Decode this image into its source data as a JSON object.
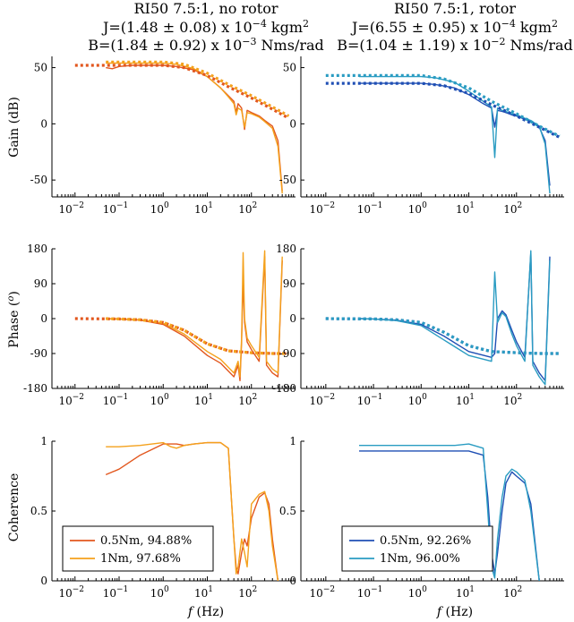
{
  "columns": [
    {
      "title1": "RI50 7.5:1, no rotor",
      "title2": "J=(1.48 ± 0.08) x 10",
      "title2_exp": "−4",
      "title2_unit": " kgm",
      "title2_unit_exp": "2",
      "title3": "B=(1.84 ± 0.92) x 10",
      "title3_exp": "−3",
      "title3_unit": " Nms/rad"
    },
    {
      "title1": "RI50 7.5:1, rotor",
      "title2": "J=(6.55 ± 0.95) x 10",
      "title2_exp": "−4",
      "title2_unit": " kgm",
      "title2_unit_exp": "2",
      "title3": "B=(1.04 ± 1.19) x 10",
      "title3_exp": "−2",
      "title3_unit": " Nms/rad"
    }
  ],
  "axis_labels": {
    "gain": "Gain (dB)",
    "phase": "Phase (",
    "phase_sup": "o",
    "phase_close": ")",
    "coherence": "Coherence",
    "x_italic": "f",
    "x_rest": " (Hz)"
  },
  "x_ticks": {
    "base": "10",
    "exponents": [
      "−2",
      "−1",
      "0",
      "1",
      "2"
    ]
  },
  "y_ticks": {
    "gain": [
      "50",
      "0",
      "-50"
    ],
    "phase": [
      "180",
      "90",
      "0",
      "-90",
      "-180"
    ],
    "coherence": [
      "1",
      "0.5",
      "0"
    ]
  },
  "legends": [
    {
      "entries": [
        {
          "label": "0.5Nm, 94.88%",
          "color": "#e2571e"
        },
        {
          "label": "1Nm, 97.68%",
          "color": "#f4a11c"
        }
      ]
    },
    {
      "entries": [
        {
          "label": "0.5Nm, 92.26%",
          "color": "#1f4fb4"
        },
        {
          "label": "1Nm, 96.00%",
          "color": "#2a9cc2"
        }
      ]
    }
  ],
  "colors": {
    "no_rotor_05": "#e2571e",
    "no_rotor_1": "#f4a11c",
    "rotor_05": "#1f4fb4",
    "rotor_1": "#2a9cc2"
  },
  "chart_data": [
    {
      "type": "line",
      "panel": "gain",
      "column": 0,
      "xscale": "log",
      "xlim": [
        0.003,
        1000
      ],
      "ylim": [
        -65,
        60
      ],
      "series": [
        {
          "color": "#e2571e",
          "style": "solid",
          "x": [
            0.05,
            0.07,
            0.1,
            0.2,
            0.5,
            1,
            2,
            5,
            10,
            20,
            30,
            40,
            45,
            50,
            60,
            70,
            80,
            100,
            150,
            200,
            300,
            400,
            500
          ],
          "y": [
            50,
            49,
            51,
            52,
            52,
            52,
            51,
            48,
            42,
            32,
            25,
            20,
            10,
            18,
            14,
            -5,
            12,
            10,
            7,
            3,
            -2,
            -15,
            -60
          ]
        },
        {
          "color": "#f4a11c",
          "style": "solid",
          "x": [
            0.05,
            0.1,
            0.2,
            0.5,
            1,
            2,
            5,
            10,
            20,
            30,
            40,
            45,
            50,
            60,
            70,
            80,
            100,
            150,
            200,
            300,
            400,
            500
          ],
          "y": [
            54,
            54,
            54,
            54,
            54,
            53,
            49,
            42,
            32,
            24,
            18,
            8,
            14,
            12,
            -3,
            10,
            9,
            6,
            2,
            -4,
            -20,
            -62
          ]
        },
        {
          "color": "#e2571e",
          "style": "dotted",
          "x": [
            0.01,
            0.1,
            1,
            3,
            10,
            30,
            100,
            300,
            700
          ],
          "y": [
            52,
            52,
            52,
            50,
            43,
            33,
            23,
            13,
            5
          ]
        },
        {
          "color": "#f4a11c",
          "style": "dotted",
          "x": [
            0.05,
            0.1,
            1,
            3,
            10,
            30,
            100,
            300,
            700
          ],
          "y": [
            55,
            55,
            55,
            53,
            45,
            35,
            25,
            15,
            7
          ]
        }
      ]
    },
    {
      "type": "line",
      "panel": "gain",
      "column": 1,
      "xscale": "log",
      "xlim": [
        0.003,
        1000
      ],
      "ylim": [
        -65,
        60
      ],
      "series": [
        {
          "color": "#1f4fb4",
          "style": "solid",
          "x": [
            0.05,
            0.1,
            1,
            2,
            5,
            10,
            20,
            30,
            35,
            40,
            50,
            60,
            80,
            100,
            150,
            200,
            300,
            400,
            500
          ],
          "y": [
            36,
            36,
            36,
            35,
            32,
            26,
            18,
            14,
            -3,
            12,
            11,
            10,
            8,
            7,
            4,
            2,
            -3,
            -15,
            -55
          ]
        },
        {
          "color": "#2a9cc2",
          "style": "solid",
          "x": [
            0.05,
            0.1,
            1,
            2,
            5,
            10,
            20,
            30,
            35,
            40,
            50,
            60,
            80,
            100,
            150,
            200,
            300,
            400,
            500
          ],
          "y": [
            42,
            42,
            42,
            41,
            37,
            29,
            20,
            15,
            -30,
            14,
            12,
            11,
            9,
            8,
            5,
            3,
            -2,
            -18,
            -62
          ]
        },
        {
          "color": "#1f4fb4",
          "style": "dotted",
          "x": [
            0.01,
            0.1,
            1,
            3,
            10,
            30,
            100,
            300,
            800
          ],
          "y": [
            36,
            36,
            36,
            34,
            27,
            17,
            7,
            -3,
            -12
          ]
        },
        {
          "color": "#2a9cc2",
          "style": "dotted",
          "x": [
            0.01,
            0.1,
            1,
            3,
            10,
            30,
            100,
            300,
            800
          ],
          "y": [
            43,
            43,
            43,
            40,
            32,
            20,
            9,
            -2,
            -11
          ]
        }
      ]
    },
    {
      "type": "line",
      "panel": "phase",
      "column": 0,
      "xscale": "log",
      "xlim": [
        0.003,
        1000
      ],
      "ylim": [
        -180,
        180
      ],
      "series": [
        {
          "color": "#e2571e",
          "style": "solid",
          "x": [
            0.05,
            0.1,
            0.3,
            1,
            3,
            10,
            20,
            40,
            50,
            55,
            60,
            65,
            70,
            80,
            100,
            150,
            200,
            220,
            300,
            400,
            500
          ],
          "y": [
            0,
            -1,
            -4,
            -15,
            -45,
            -95,
            -115,
            -150,
            -120,
            -160,
            -60,
            100,
            -10,
            -60,
            -80,
            -110,
            160,
            -120,
            -140,
            -150,
            150
          ]
        },
        {
          "color": "#f4a11c",
          "style": "solid",
          "x": [
            0.05,
            0.1,
            0.3,
            1,
            3,
            10,
            20,
            40,
            50,
            55,
            60,
            65,
            70,
            80,
            100,
            150,
            200,
            220,
            300,
            400,
            500
          ],
          "y": [
            0,
            -1,
            -3,
            -12,
            -40,
            -85,
            -105,
            -140,
            -110,
            -150,
            -50,
            170,
            0,
            -50,
            -70,
            -100,
            175,
            -110,
            -130,
            -140,
            160
          ]
        },
        {
          "color": "#e2571e",
          "style": "dotted",
          "x": [
            0.01,
            0.1,
            0.3,
            1,
            3,
            10,
            30,
            100,
            300,
            700
          ],
          "y": [
            0,
            -1,
            -3,
            -10,
            -30,
            -65,
            -83,
            -88,
            -90,
            -90
          ]
        },
        {
          "color": "#f4a11c",
          "style": "dotted",
          "x": [
            0.05,
            0.1,
            0.3,
            1,
            3,
            10,
            30,
            100,
            300,
            700
          ],
          "y": [
            0,
            -1,
            -3,
            -10,
            -30,
            -65,
            -83,
            -88,
            -90,
            -90
          ]
        }
      ]
    },
    {
      "type": "line",
      "panel": "phase",
      "column": 1,
      "xscale": "log",
      "xlim": [
        0.003,
        1000
      ],
      "ylim": [
        -180,
        180
      ],
      "series": [
        {
          "color": "#1f4fb4",
          "style": "solid",
          "x": [
            0.05,
            0.1,
            0.3,
            1,
            3,
            10,
            30,
            35,
            40,
            50,
            60,
            80,
            100,
            150,
            200,
            220,
            300,
            400,
            500
          ],
          "y": [
            0,
            -1,
            -4,
            -15,
            -45,
            -85,
            -100,
            -90,
            0,
            20,
            10,
            -30,
            -60,
            -100,
            170,
            -110,
            -140,
            -160,
            160
          ]
        },
        {
          "color": "#2a9cc2",
          "style": "solid",
          "x": [
            0.05,
            0.1,
            0.3,
            1,
            3,
            10,
            30,
            35,
            40,
            50,
            60,
            80,
            100,
            150,
            200,
            220,
            300,
            400,
            500
          ],
          "y": [
            0,
            -1,
            -5,
            -18,
            -55,
            -95,
            -110,
            120,
            -10,
            15,
            5,
            -40,
            -70,
            -110,
            175,
            -120,
            -150,
            -170,
            150
          ]
        },
        {
          "color": "#1f4fb4",
          "style": "dotted",
          "x": [
            0.01,
            0.1,
            0.3,
            1,
            3,
            10,
            30,
            100,
            300,
            800
          ],
          "y": [
            0,
            -1,
            -3,
            -10,
            -35,
            -70,
            -85,
            -88,
            -90,
            -90
          ]
        },
        {
          "color": "#2a9cc2",
          "style": "dotted",
          "x": [
            0.01,
            0.1,
            0.3,
            1,
            3,
            10,
            30,
            100,
            300,
            800
          ],
          "y": [
            0,
            -1,
            -3,
            -10,
            -35,
            -70,
            -85,
            -88,
            -90,
            -90
          ]
        }
      ]
    },
    {
      "type": "line",
      "panel": "coherence",
      "column": 0,
      "xscale": "log",
      "xlim": [
        0.003,
        1000
      ],
      "ylim": [
        0,
        1
      ],
      "legend": "bottom-left",
      "series": [
        {
          "name": "0.5Nm, 94.88%",
          "color": "#e2571e",
          "style": "solid",
          "x": [
            0.05,
            0.1,
            0.3,
            1,
            2,
            3,
            5,
            10,
            20,
            30,
            35,
            40,
            45,
            50,
            60,
            70,
            80,
            100,
            150,
            200,
            250,
            300,
            400
          ],
          "y": [
            0.76,
            0.8,
            0.9,
            0.98,
            0.98,
            0.97,
            0.98,
            0.99,
            0.99,
            0.95,
            0.6,
            0.3,
            0.1,
            0.05,
            0.2,
            0.3,
            0.25,
            0.45,
            0.6,
            0.63,
            0.55,
            0.3,
            0.0
          ]
        },
        {
          "name": "1Nm, 97.68%",
          "color": "#f4a11c",
          "style": "solid",
          "x": [
            0.05,
            0.1,
            0.3,
            1,
            1.5,
            2,
            3,
            5,
            10,
            20,
            30,
            35,
            40,
            45,
            50,
            60,
            70,
            80,
            100,
            150,
            200,
            250,
            300,
            400
          ],
          "y": [
            0.96,
            0.96,
            0.97,
            0.99,
            0.96,
            0.95,
            0.97,
            0.98,
            0.99,
            0.99,
            0.95,
            0.6,
            0.3,
            0.05,
            0.1,
            0.3,
            0.2,
            0.1,
            0.55,
            0.62,
            0.64,
            0.5,
            0.25,
            0.0
          ]
        }
      ]
    },
    {
      "type": "line",
      "panel": "coherence",
      "column": 1,
      "xscale": "log",
      "xlim": [
        0.003,
        1000
      ],
      "ylim": [
        0,
        1
      ],
      "legend": "bottom-left",
      "series": [
        {
          "name": "0.5Nm, 92.26%",
          "color": "#1f4fb4",
          "style": "solid",
          "x": [
            0.05,
            0.1,
            1,
            5,
            10,
            20,
            25,
            30,
            35,
            40,
            50,
            60,
            80,
            100,
            150,
            200,
            300
          ],
          "y": [
            0.93,
            0.93,
            0.93,
            0.93,
            0.93,
            0.9,
            0.6,
            0.2,
            0.05,
            0.2,
            0.5,
            0.7,
            0.78,
            0.75,
            0.7,
            0.55,
            0.0
          ]
        },
        {
          "name": "1Nm, 96.00%",
          "color": "#2a9cc2",
          "style": "solid",
          "x": [
            0.05,
            0.1,
            1,
            5,
            10,
            20,
            25,
            30,
            35,
            40,
            50,
            60,
            80,
            100,
            150,
            200,
            300
          ],
          "y": [
            0.97,
            0.97,
            0.97,
            0.97,
            0.98,
            0.95,
            0.5,
            0.1,
            0.02,
            0.3,
            0.6,
            0.75,
            0.8,
            0.78,
            0.72,
            0.5,
            0.0
          ]
        }
      ]
    }
  ]
}
